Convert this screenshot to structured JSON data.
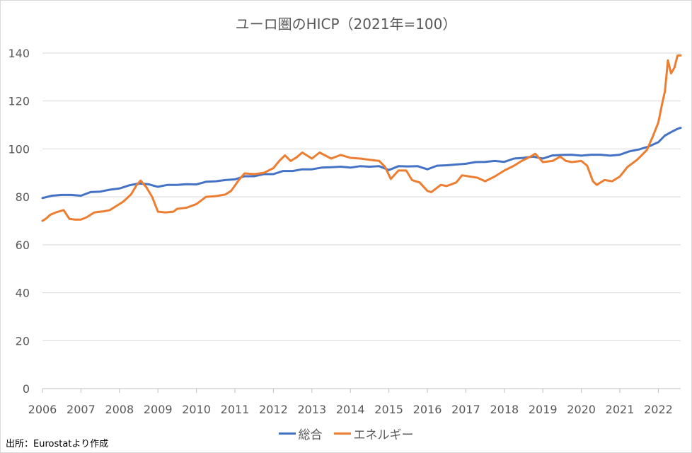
{
  "chart_data": {
    "type": "line",
    "title": "ユーロ圏のHICP（2021年=100）",
    "ylim": [
      0,
      140
    ],
    "yticks": [
      0,
      20,
      40,
      60,
      80,
      100,
      120,
      140
    ],
    "xlim": [
      2006,
      2022.58
    ],
    "xticks": [
      "2006",
      "2007",
      "2008",
      "2009",
      "2010",
      "2011",
      "2012",
      "2013",
      "2014",
      "2015",
      "2016",
      "2017",
      "2018",
      "2019",
      "2020",
      "2021",
      "2022"
    ],
    "grid": "horizontal",
    "legend_position": "bottom",
    "series": [
      {
        "name": "総合",
        "color": "#4472c4",
        "points": [
          [
            2006.0,
            79.5
          ],
          [
            2006.25,
            80.5
          ],
          [
            2006.5,
            80.8
          ],
          [
            2006.75,
            80.8
          ],
          [
            2007.0,
            80.5
          ],
          [
            2007.25,
            82.0
          ],
          [
            2007.5,
            82.2
          ],
          [
            2007.75,
            83.0
          ],
          [
            2008.0,
            83.5
          ],
          [
            2008.25,
            84.8
          ],
          [
            2008.5,
            85.6
          ],
          [
            2008.75,
            85.3
          ],
          [
            2008.9,
            84.6
          ],
          [
            2009.0,
            84.2
          ],
          [
            2009.25,
            85.0
          ],
          [
            2009.5,
            85.0
          ],
          [
            2009.75,
            85.3
          ],
          [
            2010.0,
            85.2
          ],
          [
            2010.25,
            86.3
          ],
          [
            2010.5,
            86.5
          ],
          [
            2010.75,
            87.0
          ],
          [
            2011.0,
            87.3
          ],
          [
            2011.25,
            88.6
          ],
          [
            2011.5,
            88.6
          ],
          [
            2011.75,
            89.5
          ],
          [
            2012.0,
            89.5
          ],
          [
            2012.25,
            90.8
          ],
          [
            2012.5,
            90.8
          ],
          [
            2012.75,
            91.5
          ],
          [
            2013.0,
            91.5
          ],
          [
            2013.25,
            92.2
          ],
          [
            2013.5,
            92.4
          ],
          [
            2013.75,
            92.6
          ],
          [
            2014.0,
            92.2
          ],
          [
            2014.25,
            92.8
          ],
          [
            2014.5,
            92.6
          ],
          [
            2014.75,
            92.8
          ],
          [
            2015.0,
            91.2
          ],
          [
            2015.25,
            92.8
          ],
          [
            2015.5,
            92.7
          ],
          [
            2015.75,
            92.8
          ],
          [
            2016.0,
            91.5
          ],
          [
            2016.25,
            93.0
          ],
          [
            2016.5,
            93.2
          ],
          [
            2016.75,
            93.5
          ],
          [
            2017.0,
            93.8
          ],
          [
            2017.25,
            94.5
          ],
          [
            2017.5,
            94.6
          ],
          [
            2017.75,
            95.0
          ],
          [
            2018.0,
            94.6
          ],
          [
            2018.25,
            96.0
          ],
          [
            2018.5,
            96.3
          ],
          [
            2018.75,
            96.8
          ],
          [
            2019.0,
            96.0
          ],
          [
            2019.25,
            97.3
          ],
          [
            2019.5,
            97.5
          ],
          [
            2019.75,
            97.6
          ],
          [
            2020.0,
            97.2
          ],
          [
            2020.25,
            97.6
          ],
          [
            2020.5,
            97.6
          ],
          [
            2020.75,
            97.2
          ],
          [
            2021.0,
            97.6
          ],
          [
            2021.25,
            99.0
          ],
          [
            2021.5,
            99.8
          ],
          [
            2021.75,
            101.0
          ],
          [
            2022.0,
            102.8
          ],
          [
            2022.17,
            105.6
          ],
          [
            2022.33,
            107.0
          ],
          [
            2022.5,
            108.4
          ],
          [
            2022.58,
            108.8
          ]
        ]
      },
      {
        "name": "エネルギー",
        "color": "#ed7d31",
        "points": [
          [
            2006.0,
            70.0
          ],
          [
            2006.1,
            71.0
          ],
          [
            2006.2,
            72.5
          ],
          [
            2006.35,
            73.5
          ],
          [
            2006.55,
            74.5
          ],
          [
            2006.7,
            70.8
          ],
          [
            2006.85,
            70.5
          ],
          [
            2007.0,
            70.5
          ],
          [
            2007.15,
            71.5
          ],
          [
            2007.35,
            73.5
          ],
          [
            2007.6,
            74.0
          ],
          [
            2007.75,
            74.5
          ],
          [
            2007.95,
            76.5
          ],
          [
            2008.1,
            78.0
          ],
          [
            2008.3,
            81.0
          ],
          [
            2008.45,
            85.0
          ],
          [
            2008.55,
            86.8
          ],
          [
            2008.7,
            84.0
          ],
          [
            2008.85,
            80.0
          ],
          [
            2009.0,
            73.8
          ],
          [
            2009.2,
            73.5
          ],
          [
            2009.4,
            73.8
          ],
          [
            2009.5,
            75.0
          ],
          [
            2009.75,
            75.5
          ],
          [
            2010.0,
            77.0
          ],
          [
            2010.25,
            80.0
          ],
          [
            2010.5,
            80.3
          ],
          [
            2010.75,
            81.0
          ],
          [
            2010.9,
            82.5
          ],
          [
            2011.1,
            87.0
          ],
          [
            2011.25,
            89.8
          ],
          [
            2011.5,
            89.5
          ],
          [
            2011.75,
            90.0
          ],
          [
            2012.0,
            92.0
          ],
          [
            2012.15,
            95.0
          ],
          [
            2012.3,
            97.3
          ],
          [
            2012.45,
            95.0
          ],
          [
            2012.6,
            96.5
          ],
          [
            2012.75,
            98.5
          ],
          [
            2013.0,
            96.0
          ],
          [
            2013.2,
            98.5
          ],
          [
            2013.5,
            96.0
          ],
          [
            2013.75,
            97.5
          ],
          [
            2014.0,
            96.3
          ],
          [
            2014.25,
            96.0
          ],
          [
            2014.5,
            95.5
          ],
          [
            2014.75,
            95.0
          ],
          [
            2014.9,
            92.5
          ],
          [
            2015.05,
            87.5
          ],
          [
            2015.25,
            91.0
          ],
          [
            2015.45,
            91.0
          ],
          [
            2015.6,
            87.0
          ],
          [
            2015.8,
            86.0
          ],
          [
            2016.0,
            82.5
          ],
          [
            2016.1,
            82.0
          ],
          [
            2016.35,
            85.0
          ],
          [
            2016.5,
            84.5
          ],
          [
            2016.75,
            86.0
          ],
          [
            2016.9,
            89.0
          ],
          [
            2017.1,
            88.5
          ],
          [
            2017.3,
            88.0
          ],
          [
            2017.5,
            86.5
          ],
          [
            2017.75,
            88.5
          ],
          [
            2018.0,
            91.0
          ],
          [
            2018.25,
            93.0
          ],
          [
            2018.45,
            95.0
          ],
          [
            2018.7,
            97.0
          ],
          [
            2018.8,
            98.0
          ],
          [
            2019.0,
            94.5
          ],
          [
            2019.25,
            95.0
          ],
          [
            2019.45,
            96.8
          ],
          [
            2019.6,
            95.0
          ],
          [
            2019.75,
            94.5
          ],
          [
            2020.0,
            95.0
          ],
          [
            2020.15,
            93.0
          ],
          [
            2020.3,
            86.5
          ],
          [
            2020.4,
            85.0
          ],
          [
            2020.6,
            87.0
          ],
          [
            2020.8,
            86.5
          ],
          [
            2021.0,
            88.5
          ],
          [
            2021.2,
            92.5
          ],
          [
            2021.45,
            95.5
          ],
          [
            2021.7,
            99.5
          ],
          [
            2021.85,
            105.0
          ],
          [
            2022.0,
            111.0
          ],
          [
            2022.1,
            119.0
          ],
          [
            2022.17,
            124.0
          ],
          [
            2022.25,
            137.0
          ],
          [
            2022.33,
            131.5
          ],
          [
            2022.42,
            134.0
          ],
          [
            2022.5,
            139.0
          ],
          [
            2022.58,
            139.0
          ]
        ]
      }
    ]
  },
  "legend": {
    "total": "総合",
    "energy": "エネルギー"
  },
  "source_note": "出所：Eurostatより作成"
}
